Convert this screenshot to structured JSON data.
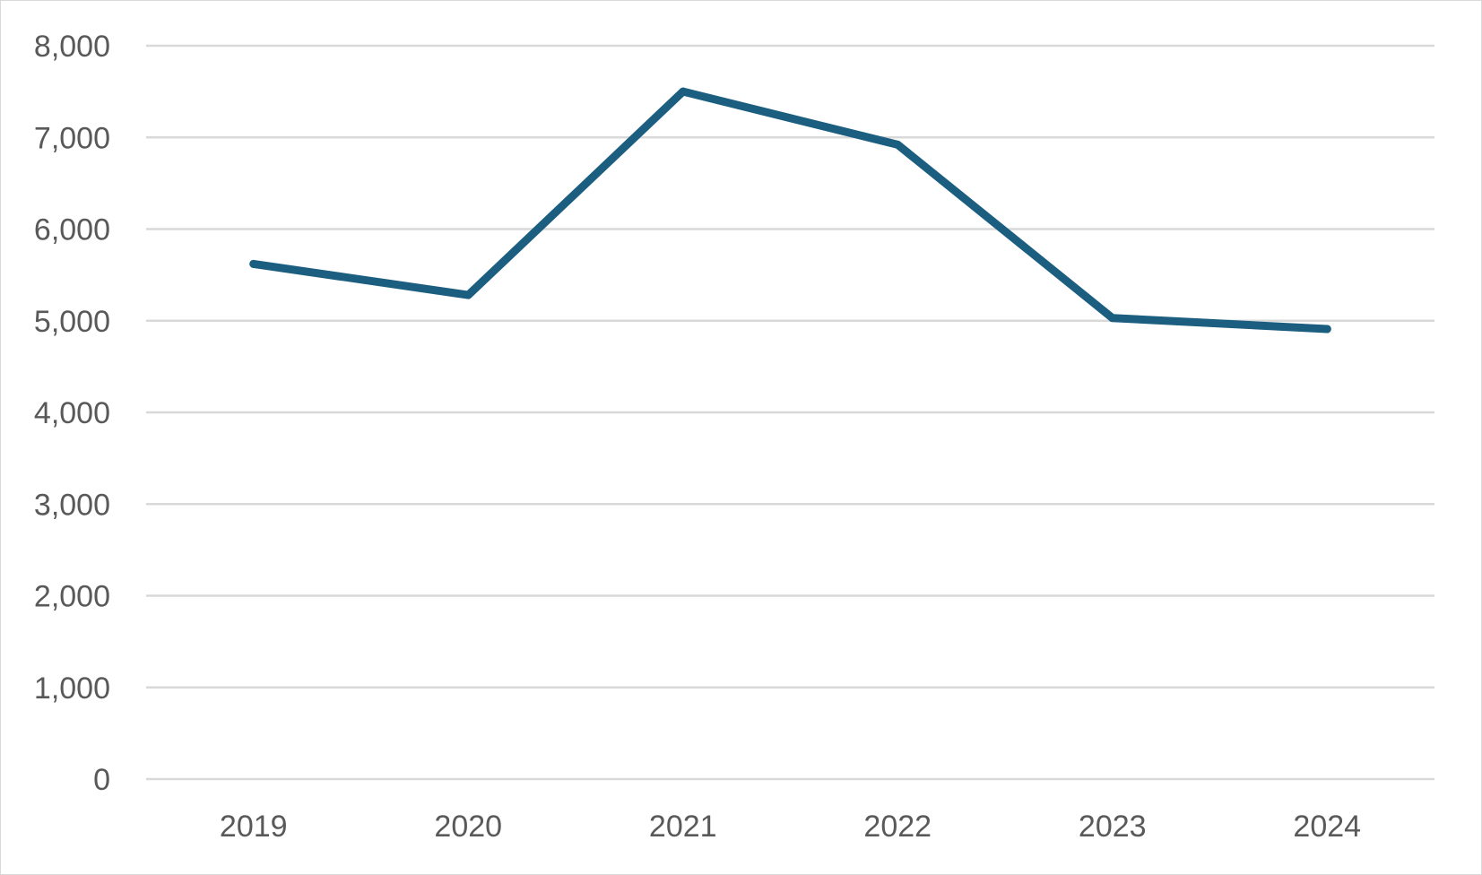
{
  "chart_data": {
    "type": "line",
    "title": "",
    "xlabel": "",
    "ylabel": "",
    "categories": [
      "2019",
      "2020",
      "2021",
      "2022",
      "2023",
      "2024"
    ],
    "series": [
      {
        "values": [
          5620,
          5280,
          7500,
          6920,
          5030,
          4910
        ]
      }
    ],
    "ylim": [
      0,
      8000
    ],
    "yticks": [
      0,
      1000,
      2000,
      3000,
      4000,
      5000,
      6000,
      7000,
      8000
    ],
    "ytick_labels": [
      "0",
      "1,000",
      "2,000",
      "3,000",
      "4,000",
      "5,000",
      "6,000",
      "7,000",
      "8,000"
    ],
    "grid": true,
    "legend": "none",
    "colors": {
      "series": "#1b5e80",
      "grid": "#d9d9d9",
      "text": "#595959"
    }
  }
}
